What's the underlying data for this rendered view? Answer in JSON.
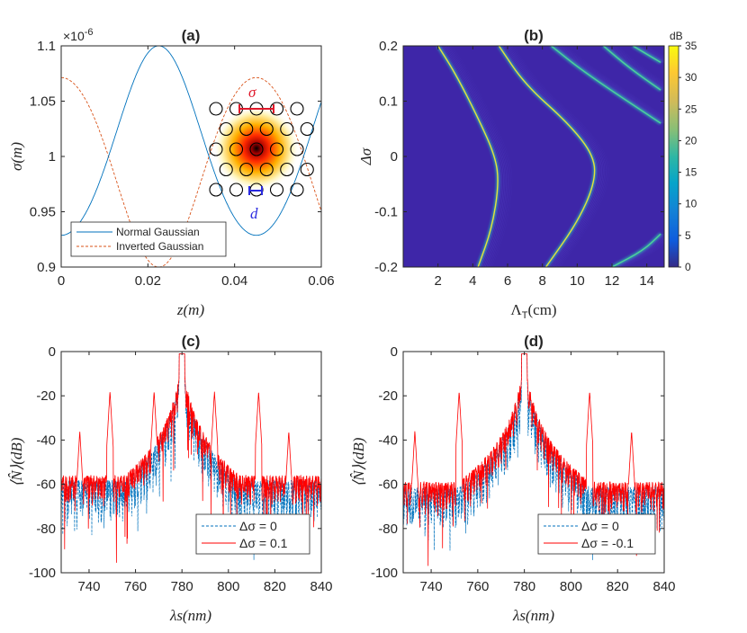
{
  "colors": {
    "normal": "#0072BD",
    "inverted": "#D95319",
    "red": "#FF0000",
    "axis": "#262626",
    "map_bg": "#3E26A8",
    "sigma_bar": "#E0182B",
    "d_bar": "#2B2BE0"
  },
  "chart_data": [
    {
      "id": "a",
      "type": "line",
      "title": "(a)",
      "xlabel": "z(m)",
      "ylabel": "σ(m)",
      "exponent_label": "×10",
      "exponent_power": "-6",
      "xlim": [
        0,
        0.06
      ],
      "ylim": [
        0.9,
        1.1
      ],
      "xticks": [
        "0",
        "0.02",
        "0.04",
        "0.06"
      ],
      "xtick_values": [
        0,
        0.02,
        0.04,
        0.06
      ],
      "yticks": [
        "0.9",
        "0.95",
        "1",
        "1.05",
        "1.1"
      ],
      "ytick_values": [
        0.9,
        0.95,
        1.0,
        1.05,
        1.1
      ],
      "series": [
        {
          "name": "Normal Gaussian",
          "style": "solid",
          "center": 0.0225,
          "width": 0.0098
        },
        {
          "name": "Inverted Gaussian",
          "style": "dashed",
          "center": 0.0225,
          "width": 0.0098
        }
      ],
      "inset": {
        "sigma_label": "σ",
        "d_label": "d"
      }
    },
    {
      "id": "b",
      "type": "heatmap",
      "title": "(b)",
      "xlabel": "Λ_T(cm)",
      "xlabel_main": "Λ",
      "xlabel_sub": "T",
      "xlabel_unit": "(cm)",
      "ylabel": "Δσ",
      "xlim": [
        0,
        15
      ],
      "ylim": [
        -0.2,
        0.2
      ],
      "xticks": [
        "2",
        "4",
        "6",
        "8",
        "10",
        "12",
        "14"
      ],
      "xtick_values": [
        2,
        4,
        6,
        8,
        10,
        12,
        14
      ],
      "yticks": [
        "-0.2",
        "-0.1",
        "0",
        "0.1",
        "0.2"
      ],
      "ytick_values": [
        -0.2,
        -0.1,
        0,
        0.1,
        0.2
      ],
      "colorbar": {
        "label": "dB",
        "range": [
          0,
          35
        ],
        "ticks": [
          "0",
          "5",
          "10",
          "15",
          "20",
          "25",
          "30",
          "35"
        ],
        "tick_values": [
          0,
          5,
          10,
          15,
          20,
          25,
          30,
          35
        ]
      },
      "branches": [
        {
          "points": [
            [
              2.0,
              0.2
            ],
            [
              3.0,
              0.15
            ],
            [
              4.3,
              0.07
            ],
            [
              5.3,
              0.0
            ],
            [
              5.5,
              -0.05
            ],
            [
              5.1,
              -0.13
            ],
            [
              4.3,
              -0.2
            ]
          ]
        },
        {
          "points": [
            [
              5.5,
              0.2
            ],
            [
              7.0,
              0.13
            ],
            [
              9.5,
              0.06
            ],
            [
              11.0,
              0.0
            ],
            [
              11.0,
              -0.05
            ],
            [
              10.0,
              -0.12
            ],
            [
              8.2,
              -0.2
            ]
          ]
        },
        {
          "points": [
            [
              8.5,
              0.2
            ],
            [
              10.5,
              0.15
            ],
            [
              14.8,
              0.06
            ]
          ]
        },
        {
          "points": [
            [
              11.5,
              0.2
            ],
            [
              13.0,
              0.16
            ],
            [
              14.8,
              0.12
            ]
          ]
        },
        {
          "points": [
            [
              13.2,
              0.2
            ],
            [
              14.8,
              0.17
            ]
          ]
        },
        {
          "points": [
            [
              12.0,
              -0.2
            ],
            [
              13.8,
              -0.17
            ],
            [
              14.8,
              -0.14
            ]
          ]
        }
      ]
    },
    {
      "id": "c",
      "type": "line",
      "title": "(c)",
      "xlabel": "λs(nm)",
      "ylabel": "⟨N̂⟩(dB)",
      "xlim": [
        728,
        840
      ],
      "ylim": [
        -100,
        0
      ],
      "xticks": [
        "740",
        "760",
        "780",
        "800",
        "820",
        "840"
      ],
      "xtick_values": [
        740,
        760,
        780,
        800,
        820,
        840
      ],
      "yticks": [
        "-100",
        "-80",
        "-60",
        "-40",
        "-20",
        "0"
      ],
      "ytick_values": [
        -100,
        -80,
        -60,
        -40,
        -20,
        0
      ],
      "series": [
        {
          "name": "Δσ = 0",
          "style": "dashed",
          "peaks": []
        },
        {
          "name": "Δσ = 0.1",
          "style": "solid",
          "peaks": [
            736,
            749,
            768,
            794,
            813,
            826
          ]
        }
      ]
    },
    {
      "id": "d",
      "type": "line",
      "title": "(d)",
      "xlabel": "λs(nm)",
      "ylabel": "⟨N̂⟩(dB)",
      "xlim": [
        728,
        840
      ],
      "ylim": [
        -100,
        0
      ],
      "xticks": [
        "740",
        "760",
        "780",
        "800",
        "820",
        "840"
      ],
      "xtick_values": [
        740,
        760,
        780,
        800,
        820,
        840
      ],
      "yticks": [
        "-100",
        "-80",
        "-60",
        "-40",
        "-20",
        "0"
      ],
      "ytick_values": [
        -100,
        -80,
        -60,
        -40,
        -20,
        0
      ],
      "series": [
        {
          "name": "Δσ = 0",
          "style": "dashed",
          "peaks": []
        },
        {
          "name": "Δσ = -0.1",
          "style": "solid",
          "peaks": [
            733,
            752,
            808,
            826
          ]
        }
      ]
    }
  ]
}
